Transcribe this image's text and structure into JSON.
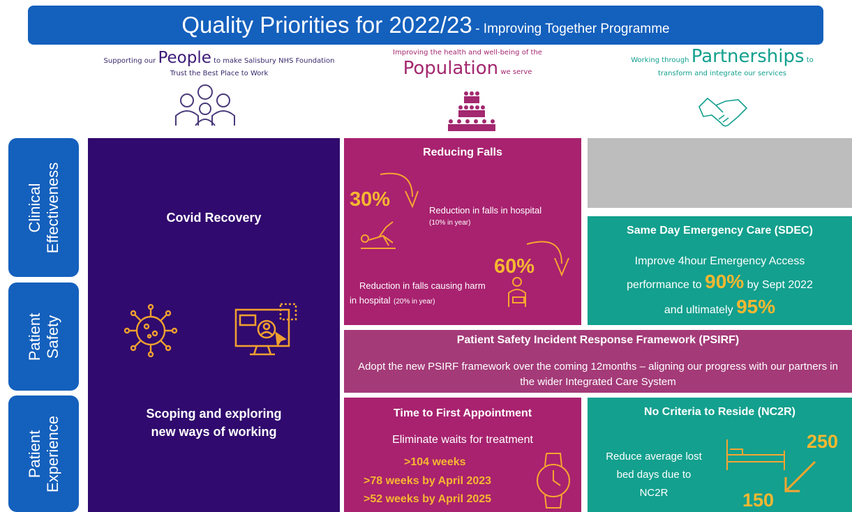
{
  "header": {
    "title": "Quality Priorities for 2022/23",
    "subtitle": "- Improving Together Programme"
  },
  "themes": {
    "people": {
      "before": "Supporting our",
      "key": "People",
      "after": "to  make Salisbury NHS Foundation",
      "line2": "Trust the Best Place to Work"
    },
    "population": {
      "line1": "Improving the health and well-being of the",
      "key": "Population",
      "after": "we serve"
    },
    "partnerships": {
      "before": "Working through",
      "key": "Partnerships",
      "after": "to",
      "line2": "transform and integrate our services"
    }
  },
  "rows": [
    {
      "lines": [
        "Clinical",
        "Effectiveness"
      ]
    },
    {
      "lines": [
        "Patient",
        "Safety"
      ]
    },
    {
      "lines": [
        "Patient",
        "Experience"
      ]
    }
  ],
  "covid": {
    "title": "Covid Recovery",
    "subtitle": "Scoping and exploring new ways of working"
  },
  "falls": {
    "title": "Reducing Falls",
    "stat1": "30%",
    "text1": "Reduction in falls in hospital",
    "note1": "(10% in year)",
    "stat2": "60%",
    "text2a": "Reduction in falls causing harm",
    "text2b": "in hospital",
    "note2": "(20% in year)"
  },
  "sdec": {
    "title": "Same Day Emergency Care (SDEC)",
    "line1": "Improve 4hour Emergency Access",
    "line2_before": "performance to",
    "target1": "90%",
    "line2_after": "by Sept 2022",
    "line3_before": "and ultimately",
    "target2": "95%"
  },
  "psirf": {
    "title": "Patient Safety Incident Response Framework (PSIRF)",
    "body": "Adopt the new PSIRF framework over the coming 12months – aligning our progress with our partners in the wider Integrated Care System"
  },
  "appointment": {
    "title": "Time to First Appointment",
    "subtitle": "Eliminate waits for treatment",
    "targets": [
      ">104 weeks",
      ">78 weeks by April 2023",
      ">52 weeks by April 2025"
    ]
  },
  "nc2r": {
    "title": "No Criteria to Reside (NC2R)",
    "body": "Reduce average lost bed days due to NC2R",
    "from": "250",
    "to": "150"
  }
}
